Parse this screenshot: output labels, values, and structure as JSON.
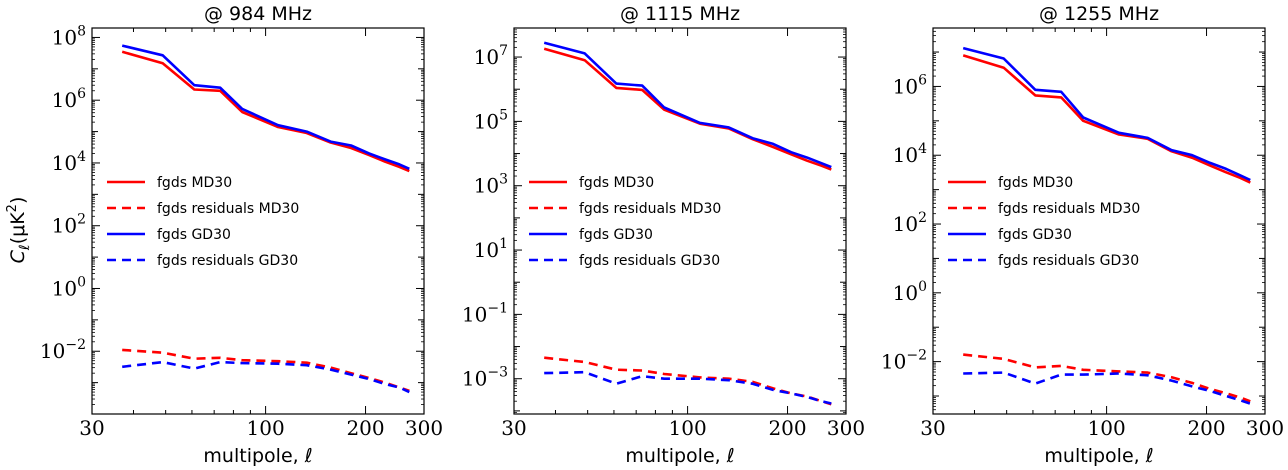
{
  "ylabel": {
    "main": "C",
    "sub": "ℓ",
    "paren": "(μK",
    "sup": "2",
    "close": ")"
  },
  "xlabel": "multipole, ℓ",
  "legend": {
    "fg_md": "fgds MD30",
    "res_md": "fgds residuals MD30",
    "fg_gd": "fgds GD30",
    "res_gd": "fgds residuals GD30"
  },
  "colors": {
    "md": "#ff0000",
    "gd": "#0000ff"
  },
  "chart_data": [
    {
      "type": "line",
      "title": "@ 984 MHz",
      "xlabel": "multipole, ℓ",
      "ylabel": "Cℓ(μK²)",
      "xscale": "log",
      "yscale": "log",
      "xlim": [
        30,
        300
      ],
      "ylim": [
        0.0001,
        200000000
      ],
      "xticks": [
        {
          "v": 30,
          "label": "30"
        },
        {
          "v": 100,
          "label": "100"
        },
        {
          "v": 200,
          "label": "200"
        },
        {
          "v": 300,
          "label": "300"
        }
      ],
      "yticks": [
        {
          "v": 0.01,
          "base": "10",
          "exp": "−2"
        },
        {
          "v": 1,
          "base": "10",
          "exp": "0"
        },
        {
          "v": 100,
          "base": "10",
          "exp": "2"
        },
        {
          "v": 10000,
          "base": "10",
          "exp": "4"
        },
        {
          "v": 1000000,
          "base": "10",
          "exp": "6"
        },
        {
          "v": 100000000,
          "base": "10",
          "exp": "8"
        }
      ],
      "x": [
        37,
        49,
        61,
        73,
        85,
        109,
        133,
        157,
        181,
        205,
        229,
        253,
        271
      ],
      "series": [
        {
          "name": "fgds MD30",
          "style": "solid",
          "color": "#ff0000",
          "values": [
            35000000,
            15000000,
            2200000,
            2000000,
            420000,
            140000,
            90000,
            45000,
            30000,
            18000,
            11000,
            7500,
            5500
          ]
        },
        {
          "name": "fgds residuals MD30",
          "style": "dashed",
          "color": "#ff0000",
          "values": [
            0.011,
            0.009,
            0.0058,
            0.0062,
            0.0052,
            0.0048,
            0.0043,
            0.003,
            0.002,
            0.0014,
            0.001,
            0.0007,
            0.00055
          ]
        },
        {
          "name": "fgds GD30",
          "style": "solid",
          "color": "#0000ff",
          "values": [
            55000000,
            27000000,
            3000000,
            2500000,
            530000,
            160000,
            100000,
            48000,
            36000,
            20000,
            13000,
            9000,
            6500
          ]
        },
        {
          "name": "fgds residuals GD30",
          "style": "dashed",
          "color": "#0000ff",
          "values": [
            0.0032,
            0.0045,
            0.0028,
            0.0045,
            0.0042,
            0.004,
            0.0036,
            0.0026,
            0.0018,
            0.0013,
            0.0009,
            0.0007,
            0.0005
          ]
        }
      ],
      "legend_position": "center-left"
    },
    {
      "type": "line",
      "title": "@ 1115 MHz",
      "xlabel": "multipole, ℓ",
      "ylabel": "",
      "xscale": "log",
      "yscale": "log",
      "xlim": [
        30,
        300
      ],
      "ylim": [
        8e-05,
        80000000
      ],
      "xticks": [
        {
          "v": 30,
          "label": "30"
        },
        {
          "v": 100,
          "label": "100"
        },
        {
          "v": 200,
          "label": "200"
        },
        {
          "v": 300,
          "label": "300"
        }
      ],
      "yticks": [
        {
          "v": 0.001,
          "base": "10",
          "exp": "−3"
        },
        {
          "v": 0.1,
          "base": "10",
          "exp": "−1"
        },
        {
          "v": 10,
          "base": "10",
          "exp": "1"
        },
        {
          "v": 1000,
          "base": "10",
          "exp": "3"
        },
        {
          "v": 100000,
          "base": "10",
          "exp": "5"
        },
        {
          "v": 10000000,
          "base": "10",
          "exp": "7"
        }
      ],
      "x": [
        37,
        49,
        61,
        73,
        85,
        109,
        133,
        157,
        181,
        205,
        229,
        253,
        271
      ],
      "series": [
        {
          "name": "fgds MD30",
          "style": "solid",
          "color": "#ff0000",
          "values": [
            18000000,
            8000000,
            1100000,
            950000,
            230000,
            85000,
            60000,
            28000,
            16000,
            9500,
            6000,
            4200,
            3200
          ]
        },
        {
          "name": "fgds residuals MD30",
          "style": "dashed",
          "color": "#ff0000",
          "values": [
            0.0045,
            0.0033,
            0.0019,
            0.0018,
            0.0014,
            0.0011,
            0.001,
            0.0008,
            0.0005,
            0.00035,
            0.00028,
            0.0002,
            0.00016
          ]
        },
        {
          "name": "fgds GD30",
          "style": "solid",
          "color": "#0000ff",
          "values": [
            28000000,
            13000000,
            1500000,
            1300000,
            270000,
            90000,
            65000,
            30000,
            20000,
            11000,
            7500,
            5000,
            3800
          ]
        },
        {
          "name": "fgds residuals GD30",
          "style": "dashed",
          "color": "#0000ff",
          "values": [
            0.0015,
            0.0016,
            0.0007,
            0.0012,
            0.001,
            0.001,
            0.0009,
            0.0007,
            0.00045,
            0.00035,
            0.00027,
            0.0002,
            0.00017
          ]
        }
      ],
      "legend_position": "center-left"
    },
    {
      "type": "line",
      "title": "@ 1255 MHz",
      "xlabel": "multipole, ℓ",
      "ylabel": "",
      "xscale": "log",
      "yscale": "log",
      "xlim": [
        30,
        300
      ],
      "ylim": [
        0.0003,
        50000000
      ],
      "xticks": [
        {
          "v": 30,
          "label": "30"
        },
        {
          "v": 100,
          "label": "100"
        },
        {
          "v": 200,
          "label": "200"
        },
        {
          "v": 300,
          "label": "300"
        }
      ],
      "yticks": [
        {
          "v": 0.01,
          "base": "10",
          "exp": "−2"
        },
        {
          "v": 1,
          "base": "10",
          "exp": "0"
        },
        {
          "v": 100,
          "base": "10",
          "exp": "2"
        },
        {
          "v": 10000,
          "base": "10",
          "exp": "4"
        },
        {
          "v": 1000000,
          "base": "10",
          "exp": "6"
        }
      ],
      "x": [
        37,
        49,
        61,
        73,
        85,
        109,
        133,
        157,
        181,
        205,
        229,
        253,
        271
      ],
      "series": [
        {
          "name": "fgds MD30",
          "style": "solid",
          "color": "#ff0000",
          "values": [
            8000000,
            3500000,
            550000,
            480000,
            100000,
            40000,
            30000,
            13000,
            8500,
            5000,
            3200,
            2200,
            1600
          ]
        },
        {
          "name": "fgds residuals MD30",
          "style": "dashed",
          "color": "#ff0000",
          "values": [
            0.016,
            0.012,
            0.0068,
            0.0075,
            0.0058,
            0.0052,
            0.0048,
            0.0035,
            0.0024,
            0.0016,
            0.0012,
            0.0009,
            0.0007
          ]
        },
        {
          "name": "fgds GD30",
          "style": "solid",
          "color": "#0000ff",
          "values": [
            13000000,
            6500000,
            800000,
            700000,
            125000,
            45000,
            32000,
            14000,
            10000,
            6000,
            4000,
            2600,
            1900
          ]
        },
        {
          "name": "fgds residuals GD30",
          "style": "dashed",
          "color": "#0000ff",
          "values": [
            0.0045,
            0.0048,
            0.0023,
            0.0042,
            0.0042,
            0.0045,
            0.004,
            0.0028,
            0.0019,
            0.0014,
            0.001,
            0.00075,
            0.0006
          ]
        }
      ],
      "legend_position": "center-left"
    }
  ]
}
